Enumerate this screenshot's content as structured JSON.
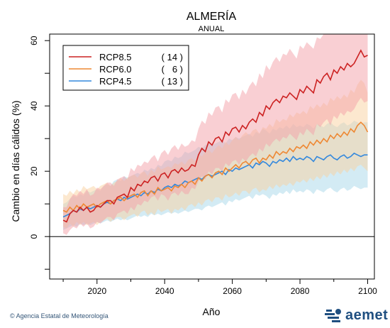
{
  "footer": {
    "copyright": "©",
    "agency": "Agencia Estatal de Meteorología"
  },
  "logo": {
    "text": "aemet",
    "icon": "aemet-logo-icon",
    "color": "#1f4f80"
  },
  "chart_data": {
    "type": "line",
    "title": "ALMERÍA",
    "subtitle": "ANUAL",
    "xlabel": "Año",
    "ylabel": "Cambio en días cálidos (%)",
    "xlim": [
      2006,
      2102
    ],
    "ylim": [
      -13,
      62
    ],
    "x_ticks": [
      2020,
      2040,
      2060,
      2080,
      2100
    ],
    "x_tick_labels": [
      "2020",
      "2040",
      "2060",
      "2080",
      "2100"
    ],
    "y_ticks": [
      -10,
      0,
      10,
      20,
      30,
      40,
      50,
      60
    ],
    "y_tick_labels": [
      "",
      "0",
      "",
      "20",
      "",
      "40",
      "",
      "60"
    ],
    "zero_line": 0,
    "grid": false,
    "legend_position": "top-left",
    "x": [
      2010,
      2011,
      2012,
      2013,
      2014,
      2015,
      2016,
      2017,
      2018,
      2019,
      2020,
      2021,
      2022,
      2023,
      2024,
      2025,
      2026,
      2027,
      2028,
      2029,
      2030,
      2031,
      2032,
      2033,
      2034,
      2035,
      2036,
      2037,
      2038,
      2039,
      2040,
      2041,
      2042,
      2043,
      2044,
      2045,
      2046,
      2047,
      2048,
      2049,
      2050,
      2051,
      2052,
      2053,
      2054,
      2055,
      2056,
      2057,
      2058,
      2059,
      2060,
      2061,
      2062,
      2063,
      2064,
      2065,
      2066,
      2067,
      2068,
      2069,
      2070,
      2071,
      2072,
      2073,
      2074,
      2075,
      2076,
      2077,
      2078,
      2079,
      2080,
      2081,
      2082,
      2083,
      2084,
      2085,
      2086,
      2087,
      2088,
      2089,
      2090,
      2091,
      2092,
      2093,
      2094,
      2095,
      2096,
      2097,
      2098,
      2099,
      2100
    ],
    "series": [
      {
        "name": "RCP8.5",
        "count": "( 14 )",
        "color": "#cc2222",
        "band_color": "#f4a0a8",
        "values": [
          5,
          4.5,
          7,
          8,
          7.5,
          9,
          8,
          9,
          7.5,
          8,
          9.5,
          9,
          10,
          11,
          11,
          10,
          12,
          12.5,
          13,
          12,
          15,
          14,
          16,
          15.5,
          17,
          16.5,
          18,
          18.5,
          17,
          19,
          19.5,
          18,
          20,
          20.5,
          19.5,
          21,
          20,
          20.5,
          22,
          21.5,
          25,
          27,
          26,
          29,
          28,
          30,
          30.5,
          29,
          32,
          31,
          33,
          33.5,
          32,
          34,
          33,
          35,
          36,
          35,
          38,
          37,
          40,
          39,
          41,
          42,
          41,
          43,
          42.5,
          44,
          43,
          42,
          45,
          44,
          46,
          45,
          44,
          48,
          47,
          49,
          50,
          48,
          51,
          50,
          52,
          51,
          53,
          52,
          53,
          55,
          57,
          55,
          55.5
        ],
        "lower": [
          1,
          0.5,
          2,
          3,
          2.5,
          4,
          3,
          4,
          2.5,
          3,
          4.5,
          4,
          5,
          6,
          6,
          5,
          7,
          7.5,
          8,
          7,
          9,
          8,
          10,
          9.5,
          11,
          10.5,
          12,
          12.5,
          11,
          13,
          12.5,
          11,
          13,
          13.5,
          12.5,
          14,
          13,
          13,
          15,
          14.5,
          17,
          18.5,
          17.5,
          20,
          19,
          21,
          21,
          20,
          22.5,
          21.5,
          23,
          23.5,
          22,
          24,
          23,
          24.5,
          25.5,
          24.5,
          27,
          26,
          28.5,
          27.5,
          29,
          30,
          29,
          30.5,
          30,
          31.5,
          30.5,
          29.5,
          32,
          31,
          33,
          32,
          31,
          34.5,
          33.5,
          35,
          36,
          34,
          37,
          36,
          38,
          37,
          38.5,
          38,
          39,
          41,
          42.5,
          41,
          41.5
        ],
        "upper": [
          9,
          9,
          11.5,
          13,
          12.5,
          14,
          13,
          14.5,
          12.5,
          13,
          15,
          14.5,
          15.5,
          16.5,
          16.5,
          15.5,
          17.5,
          18,
          18.5,
          17.5,
          21,
          20,
          22,
          21.5,
          23,
          22.5,
          24,
          25,
          23,
          25.5,
          26.5,
          25,
          27,
          28,
          26.5,
          28.5,
          27.5,
          28,
          29.5,
          29,
          33,
          35.5,
          34.5,
          38,
          37,
          39.5,
          40,
          38,
          42,
          41,
          43.5,
          44,
          42,
          45,
          43.5,
          46,
          47.5,
          46,
          50,
          48.5,
          52.5,
          51,
          53.5,
          55,
          53.5,
          56,
          55.5,
          57.5,
          56,
          54.5,
          58.5,
          57.5,
          59.5,
          58.5,
          57.5,
          61,
          60.5,
          62,
          62,
          62,
          62,
          62,
          62,
          62,
          62,
          62,
          62,
          62,
          62,
          62,
          62
        ]
      },
      {
        "name": "RCP6.0",
        "count": "(   6 )",
        "color": "#ee8833",
        "band_color": "#fad2a0",
        "values": [
          8,
          7.5,
          9,
          8,
          9.5,
          8.5,
          10,
          9,
          9.5,
          10,
          9,
          10,
          10.5,
          11,
          10,
          11,
          11.5,
          12,
          11,
          12,
          12.5,
          13,
          12,
          13.5,
          14,
          12.5,
          14,
          13,
          15,
          14,
          14.5,
          15,
          14,
          15.5,
          15,
          16,
          15,
          16.5,
          17,
          16,
          18,
          17,
          18.5,
          19,
          18,
          19.5,
          20,
          19,
          21,
          20,
          21,
          22,
          21,
          22.5,
          23,
          22,
          23.5,
          24,
          22.5,
          24,
          23.5,
          25,
          24,
          26,
          25,
          26,
          25.5,
          27,
          26,
          27.5,
          27,
          28,
          27,
          29,
          28,
          29.5,
          28.5,
          30,
          29,
          31,
          30,
          31.5,
          30.5,
          32,
          31,
          33,
          32,
          34,
          35,
          34,
          32
        ],
        "lower": [
          3,
          2.5,
          4,
          3,
          4.5,
          3.5,
          4.5,
          3.5,
          4,
          4.5,
          3.5,
          4.5,
          5,
          5.5,
          4.5,
          5.5,
          6,
          6,
          5,
          6,
          6.5,
          7,
          6,
          7.5,
          8,
          6.5,
          7.5,
          6.5,
          8.5,
          7.5,
          8,
          8.5,
          7,
          8.5,
          8,
          9,
          8,
          9.5,
          10,
          9,
          10.5,
          9.5,
          11,
          11.5,
          10.5,
          12,
          12,
          11,
          13,
          12,
          12.5,
          13.5,
          12.5,
          14,
          14,
          13,
          14.5,
          15,
          13.5,
          14.5,
          14,
          15.5,
          14.5,
          16,
          15,
          16,
          15.5,
          16.5,
          15.5,
          17,
          16.5,
          17.5,
          16.5,
          18,
          17,
          18.5,
          17.5,
          19,
          18,
          19.5,
          18.5,
          20,
          19,
          20.5,
          19.5,
          21,
          20,
          21.5,
          22,
          21,
          20
        ],
        "upper": [
          13,
          12.5,
          14,
          13,
          14.5,
          13.5,
          15.5,
          14.5,
          15,
          15.5,
          14.5,
          15.5,
          16,
          16.5,
          15.5,
          16.5,
          17,
          18,
          17,
          18,
          18.5,
          19,
          18,
          19.5,
          20,
          18.5,
          20.5,
          19.5,
          21.5,
          20.5,
          21,
          21.5,
          21,
          22.5,
          22,
          23,
          22,
          23.5,
          24,
          23,
          25.5,
          24.5,
          26,
          26.5,
          25.5,
          27,
          28,
          27,
          29,
          28,
          29.5,
          30.5,
          29.5,
          31,
          32,
          31,
          32.5,
          33,
          31.5,
          33.5,
          33,
          34.5,
          33.5,
          36,
          35,
          36,
          35.5,
          37.5,
          36.5,
          38,
          37.5,
          38.5,
          37.5,
          40,
          39,
          40.5,
          39.5,
          41,
          40,
          42.5,
          41.5,
          43,
          42,
          43.5,
          42.5,
          45,
          44,
          46.5,
          48,
          47,
          44
        ]
      },
      {
        "name": "RCP4.5",
        "count": "( 13 )",
        "color": "#3388dd",
        "band_color": "#a8d8ea",
        "values": [
          6,
          6.5,
          7,
          8,
          7.5,
          8.5,
          8,
          9,
          8.5,
          9,
          9.5,
          9,
          10,
          10.5,
          10,
          11,
          11.5,
          11,
          12,
          11.5,
          12,
          12.5,
          13,
          12.5,
          13.5,
          13,
          14,
          13.5,
          14.5,
          14,
          15,
          15.5,
          15,
          16,
          15.5,
          16,
          17,
          16.5,
          17,
          17.5,
          18,
          17.5,
          18.5,
          19,
          18.5,
          19,
          19.5,
          20,
          19,
          20.5,
          20,
          21,
          20.5,
          21,
          21.5,
          22,
          21,
          22.5,
          22,
          23,
          22.5,
          21.5,
          23,
          22.5,
          23.5,
          23,
          24,
          23,
          24.5,
          23.5,
          24,
          23.5,
          24.5,
          24,
          23,
          24.5,
          24,
          23.5,
          24.5,
          25,
          24,
          23.5,
          24.5,
          25,
          24,
          24.5,
          25.5,
          25,
          24.5,
          25,
          25
        ],
        "lower": [
          2,
          2.5,
          3,
          3.5,
          3,
          4,
          3.5,
          4,
          3.5,
          4,
          4.5,
          4,
          4.5,
          5,
          4.5,
          5,
          5.5,
          5,
          5.5,
          5,
          5.5,
          6,
          6.5,
          6,
          6.5,
          6,
          7,
          6.5,
          7,
          6.5,
          7,
          7.5,
          7,
          7.5,
          7,
          7.5,
          8,
          7.5,
          8,
          8.5,
          8.5,
          8,
          9,
          9.5,
          9,
          9.5,
          10,
          10.5,
          9.5,
          11,
          10.5,
          11.5,
          11,
          11.5,
          12,
          12.5,
          11.5,
          13,
          12.5,
          13,
          12.5,
          11.5,
          13,
          12.5,
          13.5,
          13,
          14,
          13,
          14.5,
          13.5,
          14,
          13.5,
          14.5,
          14,
          13,
          14.5,
          14,
          13.5,
          14.5,
          15,
          14,
          13.5,
          14.5,
          15,
          14,
          14.5,
          15.5,
          15,
          14.5,
          15,
          15
        ],
        "upper": [
          10,
          10.5,
          11.5,
          12.5,
          12,
          13,
          12.5,
          14,
          13.5,
          14,
          14.5,
          14,
          15.5,
          16,
          15.5,
          17,
          17.5,
          17,
          18.5,
          18,
          18.5,
          19,
          19.5,
          19,
          20.5,
          20,
          21,
          20.5,
          22,
          21.5,
          23,
          23.5,
          23,
          24.5,
          24,
          24.5,
          26,
          25.5,
          26,
          26.5,
          27.5,
          27,
          28,
          28.5,
          28,
          28.5,
          29,
          29.5,
          28.5,
          30,
          29.5,
          30.5,
          30,
          30.5,
          31,
          31.5,
          30.5,
          32,
          31.5,
          33,
          32.5,
          31.5,
          33,
          32.5,
          33.5,
          33,
          34,
          33,
          34.5,
          33.5,
          34,
          33.5,
          34.5,
          34,
          33,
          34.5,
          34,
          33.5,
          34.5,
          35,
          34,
          33.5,
          34.5,
          35,
          34,
          34.5,
          35.5,
          35,
          34.5,
          35,
          35
        ]
      }
    ]
  }
}
